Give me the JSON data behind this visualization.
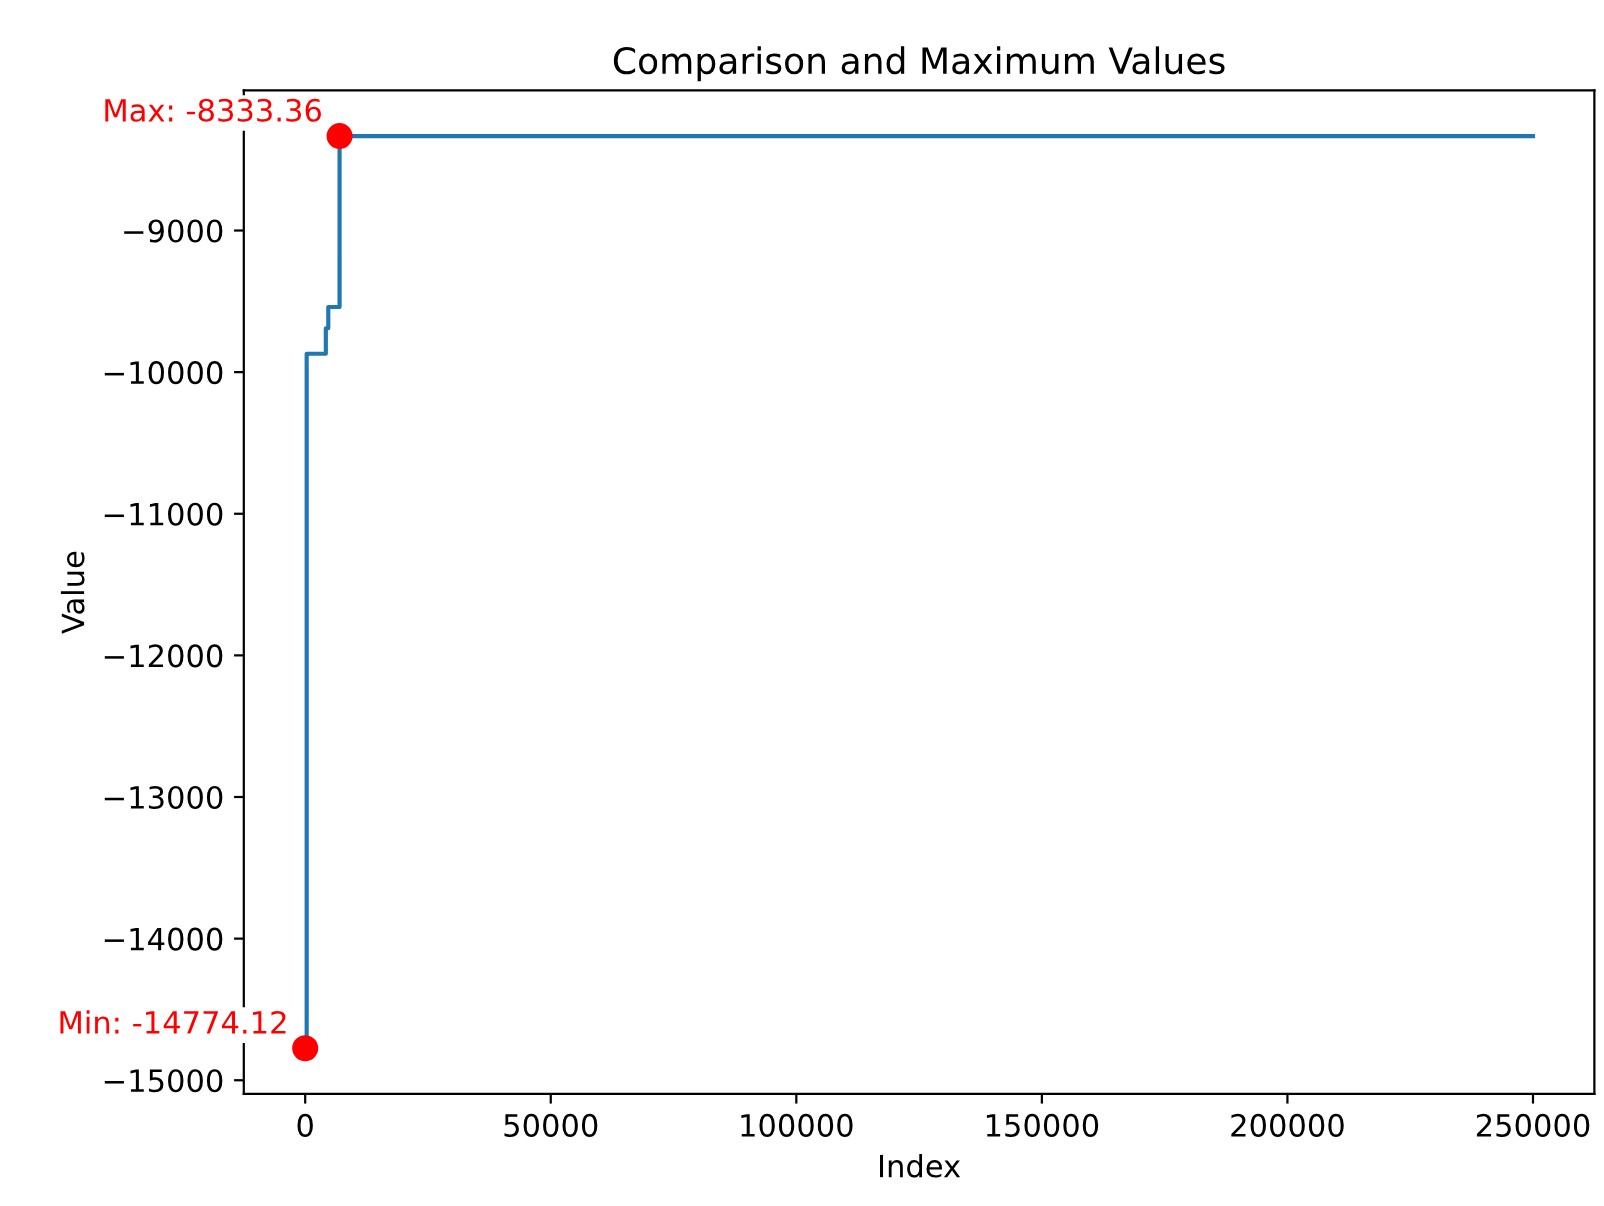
{
  "chart_data": {
    "type": "step",
    "title": "Comparison and Maximum Values",
    "xlabel": "Index",
    "ylabel": "Value",
    "series": [
      {
        "color": "#1f77b4",
        "x": [
          0,
          300,
          4200,
          4700,
          7000,
          250000
        ],
        "values": [
          -14774.12,
          -9870,
          -9690,
          -9540,
          -8333.36,
          -8333.36
        ]
      },
      {
        "type": "scatter",
        "color": "#ff0000",
        "x": [
          7000,
          0
        ],
        "values": [
          -8333.36,
          -14774.12
        ]
      }
    ],
    "annotations": [
      {
        "text": "Max: -8333.36",
        "x": 7000,
        "y": -8333.36
      },
      {
        "text": "Min: -14774.12",
        "x": 0,
        "y": -14774.12
      }
    ],
    "xlim": [
      -12500,
      262500
    ],
    "xticks": [
      0,
      50000,
      100000,
      150000,
      200000,
      250000
    ],
    "ylim": [
      -15096,
      -8011
    ],
    "yticks": [
      -15000,
      -14000,
      -13000,
      -12000,
      -11000,
      -10000,
      -9000
    ],
    "grid": false,
    "legend": false
  }
}
